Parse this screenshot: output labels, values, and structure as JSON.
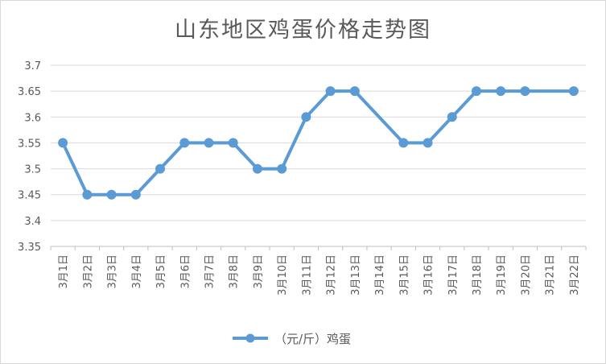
{
  "chart_data": {
    "type": "line",
    "title": "山东地区鸡蛋价格走势图",
    "categories": [
      "3月1日",
      "3月2日",
      "3月3日",
      "3月4日",
      "3月5日",
      "3月6日",
      "3月7日",
      "3月8日",
      "3月9日",
      "3月10日",
      "3月11日",
      "3月12日",
      "3月13日",
      "3月14日",
      "3月15日",
      "3月16日",
      "3月17日",
      "3月18日",
      "3月19日",
      "3月20日",
      "3月21日",
      "3月22日"
    ],
    "series": [
      {
        "name": "（元/斤）鸡蛋",
        "color": "#5b9bd5",
        "values": [
          3.55,
          3.45,
          3.45,
          3.45,
          3.5,
          3.55,
          3.55,
          3.55,
          3.5,
          3.5,
          3.6,
          3.65,
          3.65,
          3.6,
          3.55,
          3.55,
          3.6,
          3.65,
          3.65,
          3.65,
          3.65,
          3.65
        ],
        "markers": [
          true,
          true,
          true,
          true,
          true,
          true,
          true,
          true,
          true,
          true,
          true,
          true,
          true,
          false,
          true,
          true,
          true,
          true,
          true,
          true,
          false,
          true
        ]
      }
    ],
    "yticks": [
      "3.35",
      "3.4",
      "3.45",
      "3.5",
      "3.55",
      "3.6",
      "3.65",
      "3.7"
    ],
    "ylim": [
      3.35,
      3.7
    ],
    "grid": true,
    "legend_position": "bottom"
  }
}
